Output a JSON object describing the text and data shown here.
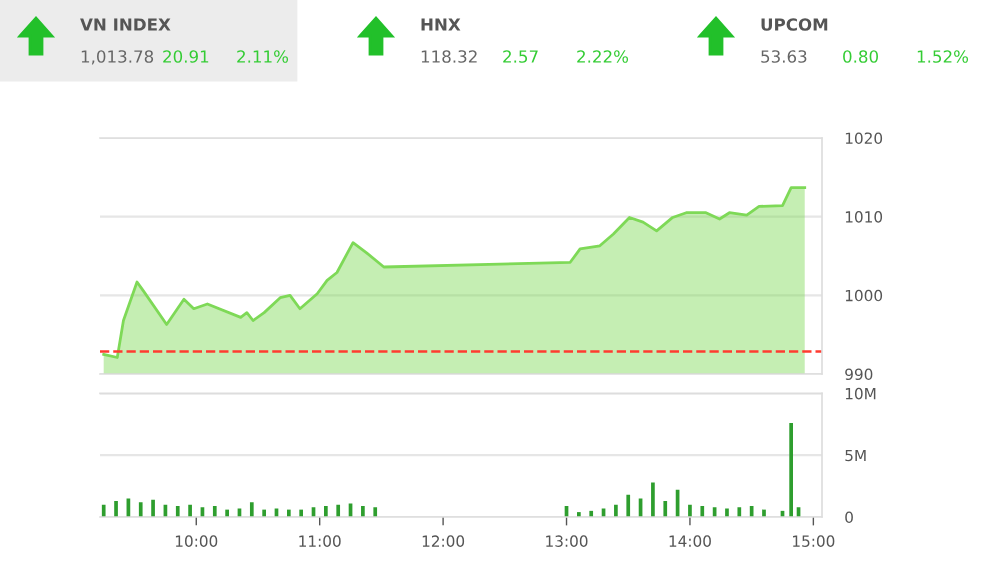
{
  "chart_data": [
    {
      "type": "area",
      "annotations": [
        "VN INDEX",
        "1,013.78",
        "20.91",
        "2.11%",
        "HNX",
        "118.32",
        "2.57",
        "2.22%",
        "UPCOM",
        "53.63",
        "0.80",
        "1.52%"
      ],
      "x": [
        9.25,
        9.36,
        9.41,
        9.52,
        9.57,
        9.76,
        9.9,
        9.98,
        10.09,
        10.36,
        10.41,
        10.46,
        10.55,
        10.68,
        10.76,
        10.84,
        10.98,
        11.06,
        11.14,
        11.27,
        11.38,
        11.52,
        13.03,
        13.11,
        13.27,
        13.38,
        13.51,
        13.62,
        13.73,
        13.86,
        13.97,
        14.13,
        14.24,
        14.32,
        14.46,
        14.56,
        14.75,
        14.82,
        14.93
      ],
      "series": [
        {
          "color": "#7ed957",
          "values": [
            992.5,
            992.1,
            996.8,
            1001.7,
            1000.6,
            996.3,
            999.5,
            998.3,
            998.9,
            997.2,
            997.8,
            996.8,
            997.8,
            999.7,
            1000.0,
            998.3,
            1000.2,
            1001.9,
            1002.9,
            1006.7,
            1005.4,
            1003.6,
            1004.2,
            1005.9,
            1006.3,
            1007.8,
            1009.9,
            1009.3,
            1008.2,
            1009.9,
            1010.5,
            1010.5,
            1009.7,
            1010.5,
            1010.2,
            1011.3,
            1011.4,
            1013.7,
            1013.7
          ]
        }
      ],
      "xlim": [
        9.22,
        15.07
      ],
      "ylim": [
        990,
        1020
      ],
      "yticks": [
        990,
        1000,
        1010,
        1020
      ],
      "grid": "y",
      "tick_labels": "y",
      "ref_lines": [
        {
          "axis": "y",
          "value": 992.87,
          "color": "#ff3b30",
          "line_style": "dashed"
        }
      ]
    },
    {
      "type": "bar",
      "x": [
        9.25,
        9.35,
        9.45,
        9.55,
        9.65,
        9.75,
        9.85,
        9.95,
        10.05,
        10.15,
        10.25,
        10.35,
        10.45,
        10.55,
        10.65,
        10.75,
        10.85,
        10.95,
        11.05,
        11.15,
        11.25,
        11.35,
        11.45,
        13.0,
        13.1,
        13.2,
        13.3,
        13.4,
        13.5,
        13.6,
        13.7,
        13.8,
        13.9,
        14.0,
        14.1,
        14.2,
        14.3,
        14.4,
        14.5,
        14.6,
        14.75,
        14.82,
        14.88
      ],
      "series": [
        {
          "color": "#2e9e2e",
          "values": [
            1.0,
            1.3,
            1.5,
            1.2,
            1.4,
            1.0,
            0.9,
            1.0,
            0.8,
            0.9,
            0.6,
            0.7,
            1.2,
            0.6,
            0.7,
            0.6,
            0.6,
            0.8,
            0.9,
            1.0,
            1.1,
            0.9,
            0.8,
            0.9,
            0.4,
            0.5,
            0.7,
            1.0,
            1.8,
            1.5,
            2.8,
            1.3,
            2.2,
            1.0,
            0.9,
            0.8,
            0.7,
            0.8,
            0.9,
            0.6,
            0.5,
            7.6,
            0.8
          ]
        }
      ],
      "xlim": [
        9.22,
        15.07
      ],
      "ylim": [
        0,
        10
      ],
      "xticks": [
        {
          "value": 10,
          "label": "10:00"
        },
        {
          "value": 11,
          "label": "11:00"
        },
        {
          "value": 12,
          "label": "12:00"
        },
        {
          "value": 13,
          "label": "13:00"
        },
        {
          "value": 14,
          "label": "14:00"
        },
        {
          "value": 15,
          "label": "15:00"
        }
      ],
      "yticks": [
        {
          "value": 0,
          "label": "0"
        },
        {
          "value": 5,
          "label": "5M"
        },
        {
          "value": 10,
          "label": "10M"
        }
      ],
      "grid": "y"
    }
  ]
}
